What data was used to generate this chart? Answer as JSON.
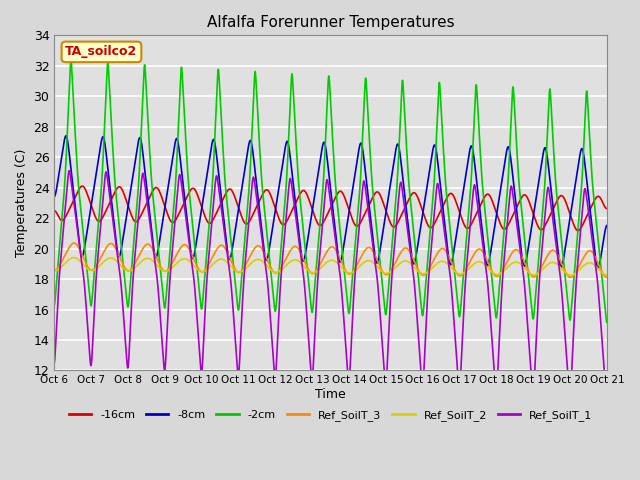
{
  "title": "Alfalfa Forerunner Temperatures",
  "ylabel": "Temperatures (C)",
  "xlabel": "Time",
  "annotation_text": "TA_soilco2",
  "annotation_color": "#cc0000",
  "annotation_bg": "#ffffcc",
  "annotation_border": "#cc8800",
  "ylim": [
    12,
    34
  ],
  "yticks": [
    12,
    14,
    16,
    18,
    20,
    22,
    24,
    26,
    28,
    30,
    32,
    34
  ],
  "xtick_labels": [
    "Oct 6",
    "Oct 7",
    "Oct 8",
    "Oct 9",
    "Oct 10",
    "Oct 11",
    "Oct 12",
    "Oct 13",
    "Oct 14",
    "Oct 15",
    "Oct 16",
    "Oct 17",
    "Oct 18",
    "Oct 19",
    "Oct 20",
    "Oct 21"
  ],
  "series_colors": [
    "#dd0000",
    "#0000cc",
    "#00cc00",
    "#ff8800",
    "#ddcc00",
    "#aa00cc"
  ],
  "series_labels": [
    "-16cm",
    "-8cm",
    "-2cm",
    "Ref_SoilT_3",
    "Ref_SoilT_2",
    "Ref_SoilT_1"
  ],
  "figsize": [
    6.4,
    4.8
  ],
  "dpi": 100
}
